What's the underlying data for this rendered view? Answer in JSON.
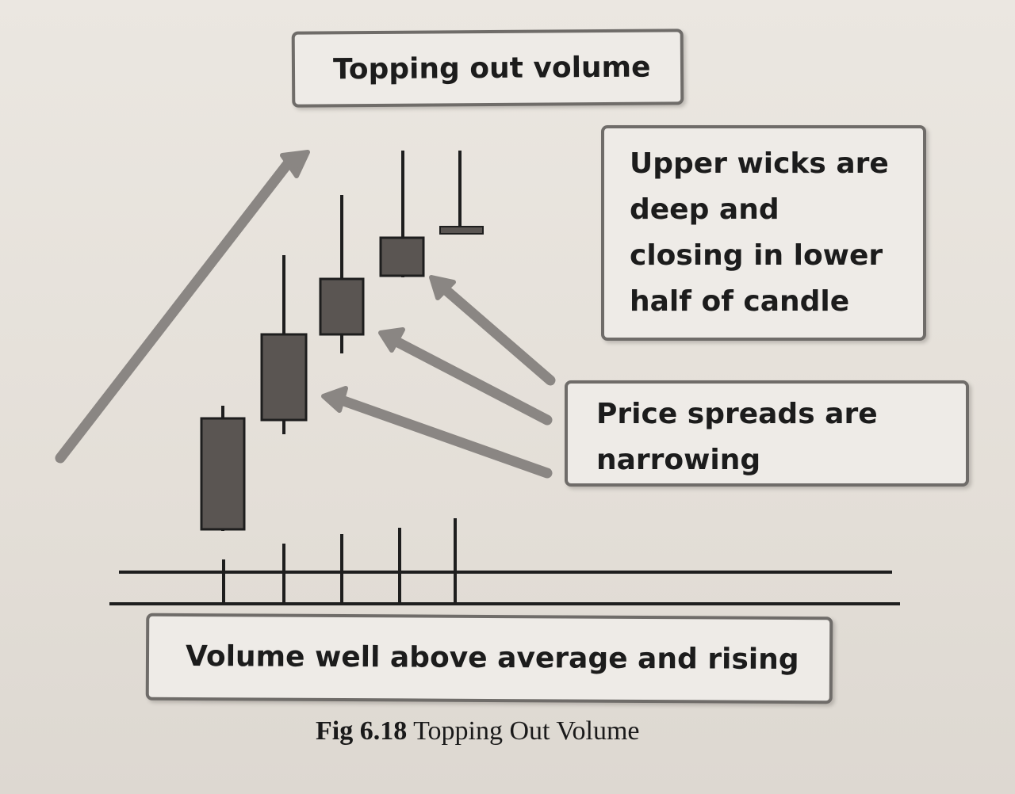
{
  "labels": {
    "title": "Topping out volume",
    "wicks": [
      "Upper wicks are",
      "deep and",
      "closing in lower",
      "half of candle"
    ],
    "spreads": [
      "Price spreads are",
      "narrowing"
    ],
    "volume": "Volume well above average and rising"
  },
  "caption": {
    "figure": "Fig 6.18",
    "text": "Topping Out Volume"
  },
  "colors": {
    "candle_body": "#5a5552",
    "wick": "#1e1e1e",
    "arrow": "#8a8683",
    "box_border": "#6f6c69"
  },
  "candles": [
    {
      "name": "candle-1"
    },
    {
      "name": "candle-2"
    },
    {
      "name": "candle-3"
    },
    {
      "name": "candle-4"
    },
    {
      "name": "candle-5"
    }
  ]
}
